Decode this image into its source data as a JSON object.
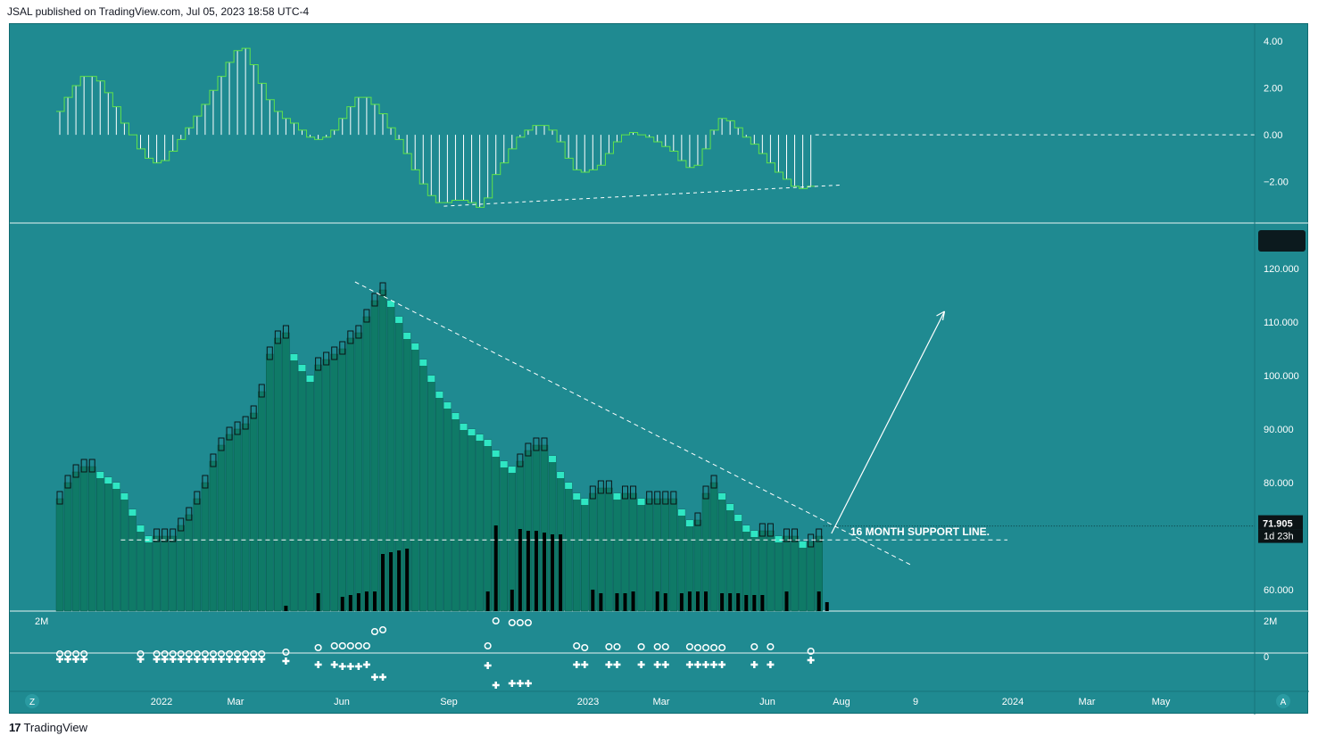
{
  "header": {
    "published": "JSAL published on TradingView.com, Jul 05, 2023 18:58 UTC-4"
  },
  "footer": {
    "brand": "TradingView",
    "mark": "17"
  },
  "colors": {
    "background": "#1f8a91",
    "bar_body": "#0f7a67",
    "bar_up_cap": "#2fe6c3",
    "oscillator_line": "#5fe24a",
    "oscillator_hist": "#ffffff",
    "volume": "#000000",
    "annotation": "#ffffff"
  },
  "chart_data": [
    {
      "type": "line",
      "panel": "oscillator",
      "ylim": [
        -3.2,
        4.2
      ],
      "y_ticks": [
        "4.00",
        "2.00",
        "0.00",
        "−2.00"
      ],
      "y_tick_values": [
        4,
        2,
        0,
        -2
      ],
      "series": [
        {
          "values": [
            1.0,
            1.6,
            2.1,
            2.5,
            2.5,
            2.3,
            1.8,
            1.2,
            0.5,
            0.0,
            -0.6,
            -1.0,
            -1.2,
            -1.1,
            -0.7,
            -0.2,
            0.3,
            0.8,
            1.3,
            1.9,
            2.5,
            3.1,
            3.6,
            3.7,
            3.0,
            2.2,
            1.5,
            1.0,
            0.7,
            0.5,
            0.2,
            -0.1,
            -0.2,
            -0.1,
            0.2,
            0.7,
            1.2,
            1.6,
            1.6,
            1.3,
            0.9,
            0.3,
            -0.2,
            -0.8,
            -1.5,
            -2.1,
            -2.6,
            -2.9,
            -2.9,
            -2.8,
            -2.8,
            -2.9,
            -3.1,
            -2.7,
            -1.7,
            -1.2,
            -0.6,
            -0.1,
            0.2,
            0.4,
            0.4,
            0.2,
            -0.3,
            -1.0,
            -1.5,
            -1.6,
            -1.5,
            -1.3,
            -0.8,
            -0.3,
            0.0,
            0.1,
            0.0,
            -0.1,
            -0.3,
            -0.5,
            -0.7,
            -1.1,
            -1.4,
            -1.3,
            -0.6,
            0.2,
            0.7,
            0.6,
            0.3,
            -0.1,
            -0.4,
            -0.8,
            -1.2,
            -1.6,
            -1.9,
            -2.2,
            -2.3,
            -2.2
          ]
        }
      ],
      "reference_line": {
        "y": 0.0,
        "style": "dashed"
      },
      "trendline": {
        "from_x": 48,
        "from_y": -3.05,
        "to_x": 97,
        "to_y": -2.15,
        "style": "dashed"
      }
    },
    {
      "type": "bar",
      "panel": "price",
      "ylim": [
        56,
        126
      ],
      "y_ticks": [
        "120.000",
        "110.000",
        "100.000",
        "90.000",
        "80.000",
        "60.000"
      ],
      "y_tick_values": [
        120,
        110,
        100,
        90,
        80,
        60
      ],
      "last_price": "71.905",
      "countdown": "1d 23h",
      "values": [
        77,
        80,
        82,
        83,
        83,
        82,
        81,
        80,
        78,
        75,
        72,
        70,
        70,
        70,
        70,
        72,
        74,
        77,
        80,
        84,
        87,
        89,
        90,
        91,
        93,
        97,
        104,
        107,
        108,
        104,
        102,
        100,
        102,
        103,
        104,
        105,
        107,
        108,
        111,
        114,
        116,
        114,
        111,
        108,
        106,
        103,
        100,
        97,
        95,
        93,
        91,
        90,
        89,
        88,
        86,
        84,
        83,
        84,
        86,
        87,
        87,
        85,
        82,
        80,
        78,
        77,
        78,
        79,
        79,
        78,
        78,
        78,
        77,
        77,
        77,
        77,
        77,
        75,
        73,
        73,
        78,
        80,
        78,
        76,
        74,
        72,
        71,
        71,
        71,
        70,
        70,
        70,
        69,
        69,
        70
      ],
      "annotation": "16 MONTH SUPPORT LINE.",
      "support_line": {
        "y": 69.3,
        "style": "dashed"
      },
      "resistance_line": {
        "from_x": 37,
        "from_y": 117.5,
        "to_x": 106,
        "to_y": 64.5,
        "style": "dashed"
      },
      "projection_arrow": {
        "from_x": 96,
        "from_y": 70.5,
        "to_x": 110,
        "to_y": 112
      }
    },
    {
      "type": "scatter",
      "panel": "signals",
      "y_ticks": [
        "2M",
        "0"
      ],
      "marker_circle": "o",
      "marker_cross": "+"
    }
  ],
  "x_axis": {
    "labels": [
      "2022",
      "Mar",
      "Jun",
      "Sep",
      "2023",
      "Mar",
      "Jun",
      "Aug",
      "9",
      "2024",
      "Mar",
      "May"
    ]
  },
  "controls": {
    "left_button": "Z",
    "right_button": "A",
    "left_panel_label": "2M"
  }
}
